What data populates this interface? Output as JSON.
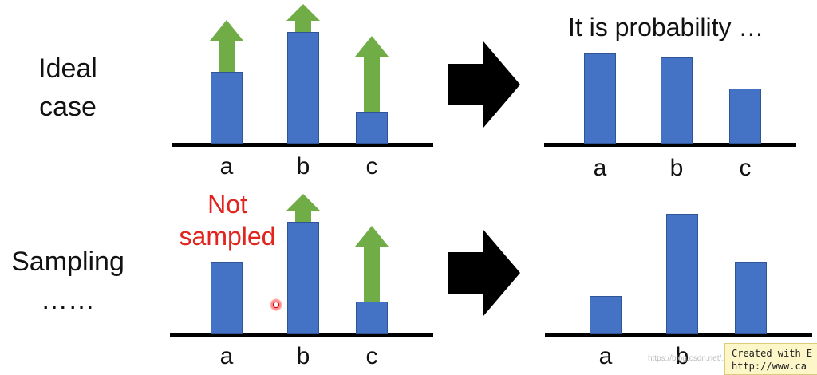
{
  "rows": {
    "ideal_label": "Ideal\ncase",
    "sampling_label": "Sampling\n……"
  },
  "categories": [
    "a",
    "b",
    "c"
  ],
  "title_right": "It is probability …",
  "annotation": "Not\nsampled",
  "colors": {
    "bar": "#4472c4",
    "arrow_green": "#70ad47",
    "annotation_red": "#e0251f",
    "axis": "#000000"
  },
  "panels": {
    "ideal_left": {
      "values": [
        90,
        140,
        40
      ],
      "targets": [
        155,
        175,
        135
      ],
      "max": 180
    },
    "ideal_right": {
      "values": [
        113,
        108,
        69
      ],
      "max": 180
    },
    "sample_left": {
      "values": [
        90,
        140,
        40
      ],
      "targets": [
        null,
        175,
        135
      ],
      "max": 180
    },
    "sample_right": {
      "values": [
        47,
        150,
        90
      ],
      "max": 180
    }
  },
  "watermark": {
    "line1": "Created with E",
    "line2": "http://www.ca"
  },
  "blog": "https://blog.csdn.net/..."
}
